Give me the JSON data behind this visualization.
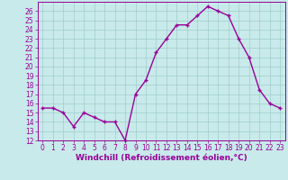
{
  "x": [
    0,
    1,
    2,
    3,
    4,
    5,
    6,
    7,
    8,
    9,
    10,
    11,
    12,
    13,
    14,
    15,
    16,
    17,
    18,
    19,
    20,
    21,
    22,
    23
  ],
  "y": [
    15.5,
    15.5,
    15.0,
    13.5,
    15.0,
    14.5,
    14.0,
    14.0,
    12.0,
    17.0,
    18.5,
    21.5,
    23.0,
    24.5,
    24.5,
    25.5,
    26.5,
    26.0,
    25.5,
    23.0,
    21.0,
    17.5,
    16.0,
    15.5
  ],
  "line_color": "#990099",
  "marker": "+",
  "background_color": "#c8eaea",
  "grid_color": "#a0cccc",
  "xlabel": "Windchill (Refroidissement éolien,°C)",
  "xlim": [
    -0.5,
    23.5
  ],
  "ylim": [
    12,
    27
  ],
  "yticks": [
    12,
    13,
    14,
    15,
    16,
    17,
    18,
    19,
    20,
    21,
    22,
    23,
    24,
    25,
    26
  ],
  "xticks": [
    0,
    1,
    2,
    3,
    4,
    5,
    6,
    7,
    8,
    9,
    10,
    11,
    12,
    13,
    14,
    15,
    16,
    17,
    18,
    19,
    20,
    21,
    22,
    23
  ],
  "tick_color": "#990099",
  "label_color": "#990099",
  "font_size_xlabel": 6.5,
  "font_size_ticks": 5.5,
  "line_width": 1.0,
  "marker_size": 3
}
